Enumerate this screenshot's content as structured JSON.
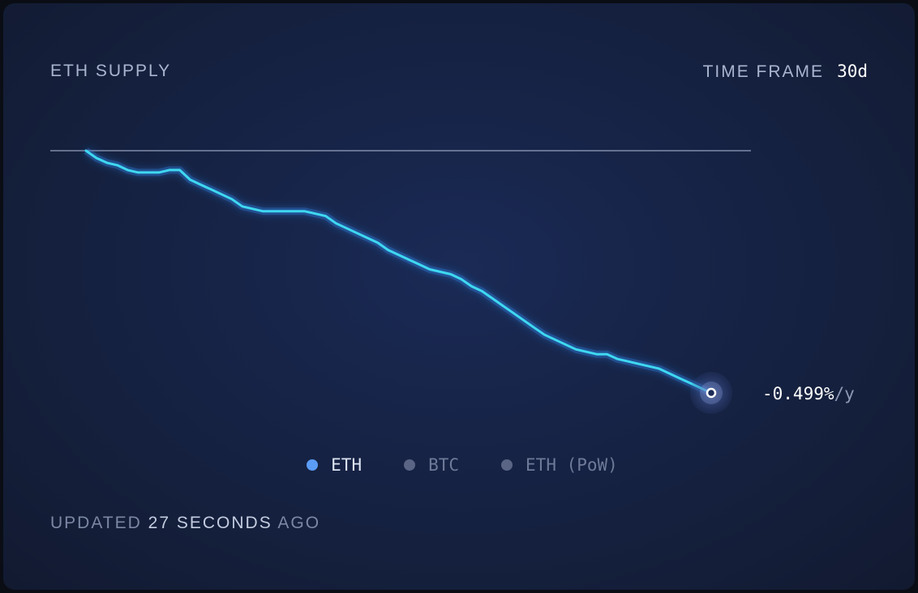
{
  "header": {
    "title": "ETH SUPPLY",
    "timeframe_label": "TIME FRAME",
    "timeframe_value": "30d"
  },
  "rate": {
    "value": "-0.499%",
    "unit": "/y"
  },
  "legend": [
    {
      "label": "ETH",
      "color": "#5b9cf6",
      "active": true
    },
    {
      "label": "BTC",
      "color": "#5a6585",
      "active": false
    },
    {
      "label": "ETH (PoW)",
      "color": "#5a6585",
      "active": false
    }
  ],
  "footer": {
    "prefix": "UPDATED",
    "amount": "27",
    "unit": "SECONDS",
    "suffix": "AGO"
  },
  "colors": {
    "line": "#3fd8f0",
    "line_glow": "#2e7fe0",
    "baseline": "#9aa6c2",
    "end_marker": "#ffffff"
  },
  "chart_data": {
    "type": "line",
    "title": "ETH SUPPLY",
    "xlabel": "",
    "ylabel": "",
    "xlim": [
      0,
      30
    ],
    "ylim": [
      -1.0,
      0.04
    ],
    "baseline": 0,
    "grid": false,
    "legend_placement": "bottom-center",
    "series": [
      {
        "name": "ETH",
        "x": [
          0,
          0.5,
          1,
          1.5,
          2,
          2.5,
          3,
          3.5,
          4,
          4.5,
          5,
          5.5,
          6,
          6.5,
          7,
          7.5,
          8,
          8.5,
          9,
          9.5,
          10,
          10.5,
          11,
          11.5,
          12,
          12.5,
          13,
          13.5,
          14,
          14.5,
          15,
          15.5,
          16,
          16.5,
          17,
          17.5,
          18,
          18.5,
          19,
          19.5,
          20,
          20.5,
          21,
          21.5,
          22,
          22.5,
          23,
          23.5,
          24,
          24.5,
          25,
          25.5,
          26,
          26.5,
          27,
          27.5,
          28,
          28.5,
          29,
          29.5,
          30
        ],
        "y": [
          0,
          -0.03,
          -0.05,
          -0.06,
          -0.08,
          -0.09,
          -0.09,
          -0.09,
          -0.08,
          -0.08,
          -0.12,
          -0.14,
          -0.16,
          -0.18,
          -0.2,
          -0.23,
          -0.24,
          -0.25,
          -0.25,
          -0.25,
          -0.25,
          -0.25,
          -0.26,
          -0.27,
          -0.3,
          -0.32,
          -0.34,
          -0.36,
          -0.38,
          -0.41,
          -0.43,
          -0.45,
          -0.47,
          -0.49,
          -0.5,
          -0.51,
          -0.53,
          -0.56,
          -0.58,
          -0.61,
          -0.64,
          -0.67,
          -0.7,
          -0.73,
          -0.76,
          -0.78,
          -0.8,
          -0.82,
          -0.83,
          -0.84,
          -0.84,
          -0.86,
          -0.87,
          -0.88,
          -0.89,
          -0.9,
          -0.92,
          -0.94,
          -0.96,
          -0.98,
          -1.0
        ]
      }
    ]
  }
}
